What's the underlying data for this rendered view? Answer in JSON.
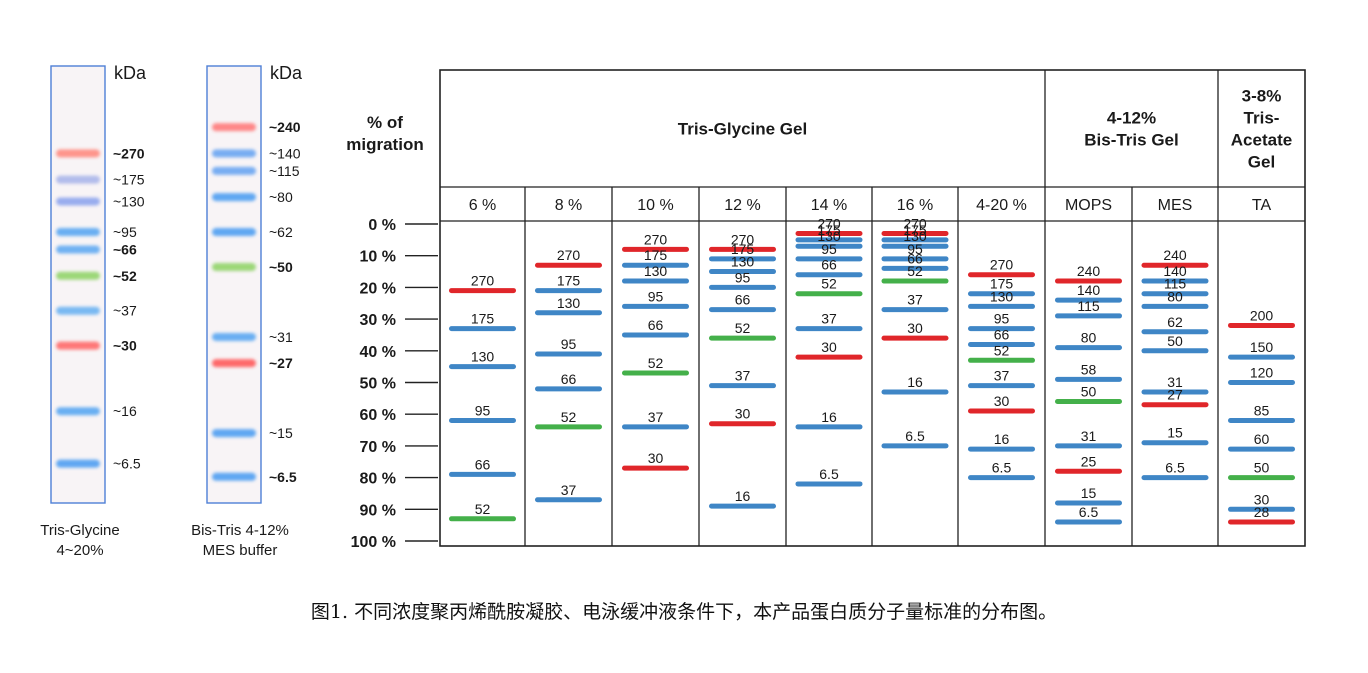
{
  "chart_data": [
    {
      "type": "gel-lane",
      "unit": "kDa",
      "caption_lines": [
        "Tris-Glycine",
        "4~20%"
      ],
      "markers": [
        {
          "label": "~270",
          "bold": true
        },
        {
          "label": "~175",
          "bold": false
        },
        {
          "label": "~130",
          "bold": false
        },
        {
          "label": "~95",
          "bold": false
        },
        {
          "label": "~66",
          "bold": true
        },
        {
          "label": "~52",
          "bold": true
        },
        {
          "label": "~37",
          "bold": false
        },
        {
          "label": "~30",
          "bold": true
        },
        {
          "label": "~16",
          "bold": false
        },
        {
          "label": "~6.5",
          "bold": false
        }
      ],
      "bands": [
        {
          "pos": 0.2,
          "color": "#ff8a80"
        },
        {
          "pos": 0.26,
          "color": "#aab6ea"
        },
        {
          "pos": 0.31,
          "color": "#8fa6ee"
        },
        {
          "pos": 0.38,
          "color": "#5aa7f2"
        },
        {
          "pos": 0.42,
          "color": "#62aaf2"
        },
        {
          "pos": 0.48,
          "color": "#92d46a"
        },
        {
          "pos": 0.56,
          "color": "#6cb2f2"
        },
        {
          "pos": 0.64,
          "color": "#ff6a6a"
        },
        {
          "pos": 0.79,
          "color": "#5aa7f2"
        },
        {
          "pos": 0.91,
          "color": "#4f9ff2"
        }
      ]
    },
    {
      "type": "gel-lane",
      "unit": "kDa",
      "caption_lines": [
        "Bis-Tris 4-12%",
        "MES buffer"
      ],
      "markers": [
        {
          "label": "~240",
          "bold": true
        },
        {
          "label": "~140",
          "bold": false
        },
        {
          "label": "~115",
          "bold": false
        },
        {
          "label": "~80",
          "bold": false
        },
        {
          "label": "~62",
          "bold": false
        },
        {
          "label": "~50",
          "bold": true
        },
        {
          "label": "~31",
          "bold": false
        },
        {
          "label": "~27",
          "bold": true
        },
        {
          "label": "~15",
          "bold": false
        },
        {
          "label": "~6.5",
          "bold": true
        }
      ],
      "bands": [
        {
          "pos": 0.14,
          "color": "#ff7b7b"
        },
        {
          "pos": 0.2,
          "color": "#6aa6f2"
        },
        {
          "pos": 0.24,
          "color": "#6aa6f2"
        },
        {
          "pos": 0.3,
          "color": "#4f9ff2"
        },
        {
          "pos": 0.38,
          "color": "#4f9ff2"
        },
        {
          "pos": 0.46,
          "color": "#92d46a"
        },
        {
          "pos": 0.62,
          "color": "#5aa7f2"
        },
        {
          "pos": 0.68,
          "color": "#ff5a5a"
        },
        {
          "pos": 0.84,
          "color": "#4f9ff2"
        },
        {
          "pos": 0.94,
          "color": "#4f9ff2"
        }
      ]
    },
    {
      "type": "table",
      "migration_header_lines": [
        "% of",
        "migration"
      ],
      "y_ticks": [
        "0 %",
        "10 %",
        "20 %",
        "30 %",
        "40 %",
        "50 %",
        "60 %",
        "70 %",
        "80 %",
        "90 %",
        "100 %"
      ],
      "ylim": [
        0,
        100
      ],
      "groups": [
        {
          "lines": [
            "Tris-Glycine Gel"
          ],
          "span": 7
        },
        {
          "lines": [
            "4-12%",
            "Bis-Tris Gel"
          ],
          "span": 2
        },
        {
          "lines": [
            "3-8%",
            "Tris-",
            "Acetate",
            "Gel"
          ],
          "span": 1
        }
      ],
      "colors": {
        "blue": "#3f86c6",
        "red": "#e0262a",
        "green": "#44b04a"
      },
      "lanes": [
        {
          "name": "6 %",
          "bands": [
            {
              "label": "270",
              "y": 21,
              "color": "red"
            },
            {
              "label": "175",
              "y": 33,
              "color": "blue"
            },
            {
              "label": "130",
              "y": 45,
              "color": "blue"
            },
            {
              "label": "95",
              "y": 62,
              "color": "blue"
            },
            {
              "label": "66",
              "y": 79,
              "color": "blue"
            },
            {
              "label": "52",
              "y": 93,
              "color": "green"
            }
          ]
        },
        {
          "name": "8 %",
          "bands": [
            {
              "label": "270",
              "y": 13,
              "color": "red"
            },
            {
              "label": "175",
              "y": 21,
              "color": "blue"
            },
            {
              "label": "130",
              "y": 28,
              "color": "blue"
            },
            {
              "label": "95",
              "y": 41,
              "color": "blue"
            },
            {
              "label": "66",
              "y": 52,
              "color": "blue"
            },
            {
              "label": "52",
              "y": 64,
              "color": "green"
            },
            {
              "label": "37",
              "y": 87,
              "color": "blue"
            }
          ]
        },
        {
          "name": "10 %",
          "bands": [
            {
              "label": "270",
              "y": 8,
              "color": "red"
            },
            {
              "label": "175",
              "y": 13,
              "color": "blue"
            },
            {
              "label": "130",
              "y": 18,
              "color": "blue"
            },
            {
              "label": "95",
              "y": 26,
              "color": "blue"
            },
            {
              "label": "66",
              "y": 35,
              "color": "blue"
            },
            {
              "label": "52",
              "y": 47,
              "color": "green"
            },
            {
              "label": "37",
              "y": 64,
              "color": "blue"
            },
            {
              "label": "30",
              "y": 77,
              "color": "red"
            }
          ]
        },
        {
          "name": "12 %",
          "bands": [
            {
              "label": "270",
              "y": 8,
              "color": "red"
            },
            {
              "label": "175",
              "y": 11,
              "color": "blue"
            },
            {
              "label": "130",
              "y": 15,
              "color": "blue"
            },
            {
              "label": "95",
              "y": 20,
              "color": "blue"
            },
            {
              "label": "66",
              "y": 27,
              "color": "blue"
            },
            {
              "label": "52",
              "y": 36,
              "color": "green"
            },
            {
              "label": "37",
              "y": 51,
              "color": "blue"
            },
            {
              "label": "30",
              "y": 63,
              "color": "red"
            },
            {
              "label": "16",
              "y": 89,
              "color": "blue"
            }
          ]
        },
        {
          "name": "14 %",
          "bands": [
            {
              "label": "270",
              "y": 3,
              "color": "red"
            },
            {
              "label": "175",
              "y": 5,
              "color": "blue"
            },
            {
              "label": "130",
              "y": 7,
              "color": "blue"
            },
            {
              "label": "95",
              "y": 11,
              "color": "blue"
            },
            {
              "label": "66",
              "y": 16,
              "color": "blue"
            },
            {
              "label": "52",
              "y": 22,
              "color": "green"
            },
            {
              "label": "37",
              "y": 33,
              "color": "blue"
            },
            {
              "label": "30",
              "y": 42,
              "color": "red"
            },
            {
              "label": "16",
              "y": 64,
              "color": "blue"
            },
            {
              "label": "6.5",
              "y": 82,
              "color": "blue"
            }
          ]
        },
        {
          "name": "16 %",
          "bands": [
            {
              "label": "270",
              "y": 3,
              "color": "red"
            },
            {
              "label": "175",
              "y": 5,
              "color": "blue"
            },
            {
              "label": "130",
              "y": 7,
              "color": "blue"
            },
            {
              "label": "95",
              "y": 11,
              "color": "blue"
            },
            {
              "label": "66",
              "y": 14,
              "color": "blue"
            },
            {
              "label": "52",
              "y": 18,
              "color": "green"
            },
            {
              "label": "37",
              "y": 27,
              "color": "blue"
            },
            {
              "label": "30",
              "y": 36,
              "color": "red"
            },
            {
              "label": "16",
              "y": 53,
              "color": "blue"
            },
            {
              "label": "6.5",
              "y": 70,
              "color": "blue"
            }
          ]
        },
        {
          "name": "4-20 %",
          "bands": [
            {
              "label": "270",
              "y": 16,
              "color": "red"
            },
            {
              "label": "175",
              "y": 22,
              "color": "blue"
            },
            {
              "label": "130",
              "y": 26,
              "color": "blue"
            },
            {
              "label": "95",
              "y": 33,
              "color": "blue"
            },
            {
              "label": "66",
              "y": 38,
              "color": "blue"
            },
            {
              "label": "52",
              "y": 43,
              "color": "green"
            },
            {
              "label": "37",
              "y": 51,
              "color": "blue"
            },
            {
              "label": "30",
              "y": 59,
              "color": "red"
            },
            {
              "label": "16",
              "y": 71,
              "color": "blue"
            },
            {
              "label": "6.5",
              "y": 80,
              "color": "blue"
            }
          ]
        },
        {
          "name": "MOPS",
          "bands": [
            {
              "label": "240",
              "y": 18,
              "color": "red"
            },
            {
              "label": "140",
              "y": 24,
              "color": "blue"
            },
            {
              "label": "115",
              "y": 29,
              "color": "blue"
            },
            {
              "label": "80",
              "y": 39,
              "color": "blue"
            },
            {
              "label": "58",
              "y": 49,
              "color": "blue"
            },
            {
              "label": "50",
              "y": 56,
              "color": "green"
            },
            {
              "label": "31",
              "y": 70,
              "color": "blue"
            },
            {
              "label": "25",
              "y": 78,
              "color": "red"
            },
            {
              "label": "15",
              "y": 88,
              "color": "blue"
            },
            {
              "label": "6.5",
              "y": 94,
              "color": "blue"
            }
          ]
        },
        {
          "name": "MES",
          "bands": [
            {
              "label": "240",
              "y": 13,
              "color": "red"
            },
            {
              "label": "140",
              "y": 18,
              "color": "blue"
            },
            {
              "label": "115",
              "y": 22,
              "color": "blue"
            },
            {
              "label": "80",
              "y": 26,
              "color": "blue"
            },
            {
              "label": "62",
              "y": 34,
              "color": "blue"
            },
            {
              "label": "50",
              "y": 40,
              "color": "blue"
            },
            {
              "label": "31",
              "y": 53,
              "color": "blue"
            },
            {
              "label": "27",
              "y": 57,
              "color": "red"
            },
            {
              "label": "15",
              "y": 69,
              "color": "blue"
            },
            {
              "label": "6.5",
              "y": 80,
              "color": "blue"
            }
          ]
        },
        {
          "name": "TA",
          "bands": [
            {
              "label": "200",
              "y": 32,
              "color": "red"
            },
            {
              "label": "150",
              "y": 42,
              "color": "blue"
            },
            {
              "label": "120",
              "y": 50,
              "color": "blue"
            },
            {
              "label": "85",
              "y": 62,
              "color": "blue"
            },
            {
              "label": "60",
              "y": 71,
              "color": "blue"
            },
            {
              "label": "50",
              "y": 80,
              "color": "green"
            },
            {
              "label": "30",
              "y": 90,
              "color": "blue"
            },
            {
              "label": "28",
              "y": 94,
              "color": "red"
            }
          ]
        }
      ]
    }
  ],
  "caption": "图1. 不同浓度聚丙烯酰胺凝胶、电泳缓冲液条件下，本产品蛋白质分子量标准的分布图。"
}
